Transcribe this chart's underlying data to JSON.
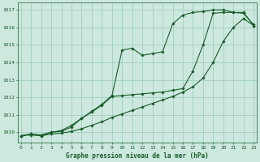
{
  "title": "Graphe pression niveau de la mer (hPa)",
  "bg_color": "#cce8df",
  "grid_color": "#99ccbb",
  "line_color": "#1a5c2a",
  "ylim": [
    1009.4,
    1017.4
  ],
  "xlim": [
    -0.3,
    23.3
  ],
  "yticks": [
    1010,
    1011,
    1012,
    1013,
    1014,
    1015,
    1016,
    1017
  ],
  "xticks": [
    0,
    1,
    2,
    3,
    4,
    5,
    6,
    7,
    8,
    9,
    10,
    11,
    12,
    13,
    14,
    15,
    16,
    17,
    18,
    19,
    20,
    21,
    22,
    23
  ],
  "series1_x": [
    0,
    1,
    2,
    3,
    4,
    5,
    6,
    7,
    8,
    9,
    10,
    11,
    12,
    13,
    14,
    15,
    16,
    17,
    18,
    19,
    20,
    21,
    22,
    23
  ],
  "series1_y": [
    1009.8,
    1009.9,
    1009.8,
    1010.0,
    1010.05,
    1010.3,
    1010.8,
    1011.2,
    1011.6,
    1012.1,
    1014.7,
    1014.8,
    1014.4,
    1014.5,
    1014.6,
    1016.2,
    1016.7,
    1016.85,
    1016.9,
    1017.0,
    1017.0,
    1016.85,
    1016.8,
    1016.15
  ],
  "series2_x": [
    0,
    1,
    2,
    3,
    4,
    5,
    6,
    7,
    8,
    9,
    10,
    11,
    12,
    13,
    14,
    15,
    16,
    17,
    18,
    19,
    20,
    21,
    22,
    23
  ],
  "series2_y": [
    1009.8,
    1009.9,
    1009.85,
    1010.0,
    1010.1,
    1010.4,
    1010.8,
    1011.15,
    1011.55,
    1012.05,
    1012.1,
    1012.15,
    1012.2,
    1012.25,
    1012.3,
    1012.4,
    1012.5,
    1013.5,
    1015.0,
    1016.8,
    1016.85,
    1016.85,
    1016.85,
    1016.1
  ],
  "series3_x": [
    0,
    1,
    2,
    3,
    4,
    5,
    6,
    7,
    8,
    9,
    10,
    11,
    12,
    13,
    14,
    15,
    16,
    17,
    18,
    19,
    20,
    21,
    22,
    23
  ],
  "series3_y": [
    1009.8,
    1009.85,
    1009.8,
    1009.9,
    1009.95,
    1010.05,
    1010.2,
    1010.4,
    1010.6,
    1010.85,
    1011.05,
    1011.25,
    1011.45,
    1011.65,
    1011.85,
    1012.05,
    1012.3,
    1012.6,
    1013.1,
    1014.0,
    1015.2,
    1016.0,
    1016.5,
    1016.1
  ]
}
